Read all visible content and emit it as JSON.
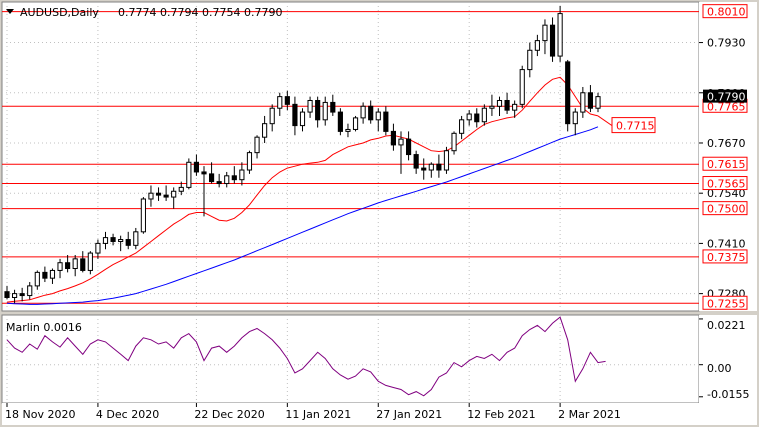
{
  "header": {
    "symbol_tf": "AUDUSD,Daily",
    "ohlc": "0.7774 0.7794 0.7754 0.7790"
  },
  "indicator": {
    "label": "Marlin 0.0016",
    "ticks": [
      "0.0221",
      "0.00",
      "-0.0155"
    ]
  },
  "colors": {
    "background": "#ffffff",
    "grid": "#c0c0c0",
    "candle": "#000000",
    "level": "#ff0000",
    "ma_fast": "#ff0000",
    "ma_slow": "#0000ff",
    "oscillator": "#800080"
  },
  "chart_data": {
    "type": "candlestick",
    "symbol": "AUDUSD",
    "timeframe": "Daily",
    "price_axis": {
      "range": [
        0.7235,
        0.8035
      ],
      "ticks": [
        "0.7930",
        "0.7800",
        "0.7670",
        "0.7540",
        "0.7410",
        "0.7280"
      ],
      "current_price": "0.7790"
    },
    "levels": [
      {
        "label": "0.8010",
        "value": 0.801
      },
      {
        "label": "0.7765",
        "value": 0.7765
      },
      {
        "label": "0.7615",
        "value": 0.7615
      },
      {
        "label": "0.7565",
        "value": 0.7565
      },
      {
        "label": "0.7500",
        "value": 0.75
      },
      {
        "label": "0.7375",
        "value": 0.7375
      },
      {
        "label": "0.7255",
        "value": 0.7255
      }
    ],
    "target_label": {
      "label": "0.7715",
      "value": 0.7715
    },
    "x_labels": [
      "18 Nov 2020",
      "4 Dec 2020",
      "22 Dec 2020",
      "11 Jan 2021",
      "27 Jan 2021",
      "12 Feb 2021",
      "2 Mar 2021"
    ],
    "candles": [
      [
        0.7285,
        0.73,
        0.7265,
        0.727
      ],
      [
        0.727,
        0.729,
        0.7255,
        0.728
      ],
      [
        0.728,
        0.7295,
        0.726,
        0.7275
      ],
      [
        0.7275,
        0.731,
        0.7265,
        0.73
      ],
      [
        0.73,
        0.734,
        0.729,
        0.7335
      ],
      [
        0.7335,
        0.735,
        0.731,
        0.732
      ],
      [
        0.732,
        0.7345,
        0.7305,
        0.734
      ],
      [
        0.734,
        0.737,
        0.732,
        0.736
      ],
      [
        0.736,
        0.738,
        0.7335,
        0.7345
      ],
      [
        0.7345,
        0.738,
        0.7325,
        0.737
      ],
      [
        0.737,
        0.739,
        0.7335,
        0.734
      ],
      [
        0.734,
        0.739,
        0.733,
        0.7385
      ],
      [
        0.7385,
        0.742,
        0.737,
        0.741
      ],
      [
        0.741,
        0.744,
        0.7395,
        0.7425
      ],
      [
        0.7425,
        0.7435,
        0.7405,
        0.7415
      ],
      [
        0.7415,
        0.743,
        0.739,
        0.742
      ],
      [
        0.742,
        0.744,
        0.7395,
        0.7405
      ],
      [
        0.7405,
        0.745,
        0.7395,
        0.744
      ],
      [
        0.744,
        0.753,
        0.7435,
        0.7525
      ],
      [
        0.7525,
        0.756,
        0.7505,
        0.754
      ],
      [
        0.754,
        0.7555,
        0.752,
        0.7535
      ],
      [
        0.7535,
        0.756,
        0.752,
        0.753
      ],
      [
        0.753,
        0.7555,
        0.75,
        0.7545
      ],
      [
        0.7545,
        0.757,
        0.7535,
        0.7555
      ],
      [
        0.7555,
        0.763,
        0.755,
        0.762
      ],
      [
        0.762,
        0.764,
        0.7585,
        0.7595
      ],
      [
        0.7595,
        0.761,
        0.748,
        0.759
      ],
      [
        0.759,
        0.762,
        0.7565,
        0.757
      ],
      [
        0.757,
        0.759,
        0.7555,
        0.7565
      ],
      [
        0.7565,
        0.7595,
        0.7555,
        0.7585
      ],
      [
        0.7585,
        0.761,
        0.7565,
        0.7575
      ],
      [
        0.7575,
        0.762,
        0.756,
        0.76
      ],
      [
        0.76,
        0.765,
        0.759,
        0.7645
      ],
      [
        0.7645,
        0.769,
        0.763,
        0.7685
      ],
      [
        0.7685,
        0.774,
        0.767,
        0.772
      ],
      [
        0.772,
        0.777,
        0.77,
        0.776
      ],
      [
        0.776,
        0.78,
        0.774,
        0.779
      ],
      [
        0.779,
        0.7805,
        0.7755,
        0.777
      ],
      [
        0.777,
        0.779,
        0.769,
        0.7715
      ],
      [
        0.7715,
        0.776,
        0.77,
        0.775
      ],
      [
        0.775,
        0.779,
        0.7735,
        0.778
      ],
      [
        0.778,
        0.779,
        0.771,
        0.773
      ],
      [
        0.773,
        0.779,
        0.7715,
        0.7775
      ],
      [
        0.7775,
        0.7795,
        0.774,
        0.775
      ],
      [
        0.775,
        0.776,
        0.769,
        0.77
      ],
      [
        0.77,
        0.772,
        0.7685,
        0.7705
      ],
      [
        0.7705,
        0.774,
        0.77,
        0.7735
      ],
      [
        0.7735,
        0.7775,
        0.772,
        0.7765
      ],
      [
        0.7765,
        0.778,
        0.772,
        0.773
      ],
      [
        0.773,
        0.776,
        0.77,
        0.775
      ],
      [
        0.775,
        0.7765,
        0.769,
        0.77
      ],
      [
        0.77,
        0.772,
        0.765,
        0.7665
      ],
      [
        0.7665,
        0.77,
        0.759,
        0.768
      ],
      [
        0.768,
        0.77,
        0.7625,
        0.764
      ],
      [
        0.764,
        0.765,
        0.759,
        0.7605
      ],
      [
        0.7605,
        0.763,
        0.7575,
        0.76
      ],
      [
        0.76,
        0.762,
        0.758,
        0.7615
      ],
      [
        0.7615,
        0.764,
        0.758,
        0.76
      ],
      [
        0.76,
        0.766,
        0.759,
        0.765
      ],
      [
        0.765,
        0.77,
        0.764,
        0.7695
      ],
      [
        0.7695,
        0.774,
        0.768,
        0.773
      ],
      [
        0.773,
        0.7755,
        0.7715,
        0.7745
      ],
      [
        0.7745,
        0.776,
        0.771,
        0.7725
      ],
      [
        0.7725,
        0.777,
        0.7715,
        0.776
      ],
      [
        0.776,
        0.7795,
        0.774,
        0.7765
      ],
      [
        0.7765,
        0.779,
        0.774,
        0.778
      ],
      [
        0.778,
        0.78,
        0.7745,
        0.7755
      ],
      [
        0.7755,
        0.778,
        0.7735,
        0.777
      ],
      [
        0.777,
        0.787,
        0.776,
        0.786
      ],
      [
        0.786,
        0.793,
        0.784,
        0.791
      ],
      [
        0.791,
        0.795,
        0.7895,
        0.7935
      ],
      [
        0.7935,
        0.799,
        0.79,
        0.7975
      ],
      [
        0.7975,
        0.7995,
        0.788,
        0.7895
      ],
      [
        0.7895,
        0.8025,
        0.788,
        0.8005
      ],
      [
        0.788,
        0.7885,
        0.77,
        0.772
      ],
      [
        0.772,
        0.776,
        0.769,
        0.775
      ],
      [
        0.775,
        0.7815,
        0.7735,
        0.78
      ],
      [
        0.78,
        0.782,
        0.775,
        0.776
      ],
      [
        0.776,
        0.78,
        0.775,
        0.779
      ]
    ],
    "ma_fast": [
      0.7258,
      0.726,
      0.7262,
      0.7264,
      0.727,
      0.7276,
      0.728,
      0.7287,
      0.7293,
      0.73,
      0.7308,
      0.7318,
      0.733,
      0.7343,
      0.7355,
      0.7365,
      0.7375,
      0.7385,
      0.74,
      0.7415,
      0.743,
      0.7445,
      0.746,
      0.7472,
      0.7485,
      0.749,
      0.749,
      0.748,
      0.747,
      0.7468,
      0.7475,
      0.749,
      0.751,
      0.7535,
      0.756,
      0.758,
      0.7595,
      0.7605,
      0.761,
      0.7615,
      0.7618,
      0.762,
      0.7625,
      0.764,
      0.765,
      0.766,
      0.7665,
      0.767,
      0.7678,
      0.7682,
      0.7688,
      0.769,
      0.7685,
      0.768,
      0.767,
      0.766,
      0.765,
      0.7648,
      0.765,
      0.766,
      0.7675,
      0.769,
      0.7705,
      0.7718,
      0.7725,
      0.773,
      0.7735,
      0.7738,
      0.7755,
      0.7778,
      0.78,
      0.782,
      0.7835,
      0.784,
      0.782,
      0.779,
      0.776,
      0.7745,
      0.774
    ],
    "ma_slow": [
      0.7255,
      0.7254,
      0.7253,
      0.7252,
      0.7252,
      0.7253,
      0.7254,
      0.7255,
      0.7256,
      0.7257,
      0.7258,
      0.726,
      0.7262,
      0.7265,
      0.7268,
      0.7272,
      0.7276,
      0.728,
      0.7286,
      0.7292,
      0.7298,
      0.7304,
      0.7311,
      0.7318,
      0.7325,
      0.7332,
      0.7339,
      0.7346,
      0.7353,
      0.736,
      0.7367,
      0.7375,
      0.7383,
      0.7391,
      0.7399,
      0.7407,
      0.7415,
      0.7423,
      0.7431,
      0.7439,
      0.7447,
      0.7455,
      0.7463,
      0.7471,
      0.7479,
      0.7487,
      0.7494,
      0.7501,
      0.7508,
      0.7515,
      0.7521,
      0.7527,
      0.7533,
      0.7539,
      0.7545,
      0.7551,
      0.7557,
      0.7563,
      0.7569,
      0.7576,
      0.7583,
      0.759,
      0.7597,
      0.7604,
      0.7611,
      0.7618,
      0.7625,
      0.7632,
      0.764,
      0.7648,
      0.7656,
      0.7664,
      0.7672,
      0.768,
      0.7686,
      0.7692,
      0.7698,
      0.7704,
      0.7712
    ],
    "oscillator": {
      "name": "Marlin",
      "value": "0.0016",
      "range": [
        -0.0185,
        0.024
      ],
      "values": [
        0.012,
        0.008,
        0.006,
        0.01,
        0.0075,
        0.014,
        0.011,
        0.0085,
        0.013,
        0.009,
        0.005,
        0.01,
        0.012,
        0.011,
        0.008,
        0.005,
        0.002,
        0.009,
        0.013,
        0.012,
        0.01,
        0.011,
        0.008,
        0.013,
        0.015,
        0.011,
        0.002,
        0.008,
        0.009,
        0.006,
        0.009,
        0.013,
        0.016,
        0.0175,
        0.015,
        0.012,
        0.008,
        0.003,
        -0.004,
        -0.002,
        0.002,
        0.006,
        0.003,
        -0.002,
        -0.005,
        -0.007,
        -0.0055,
        -0.002,
        -0.0035,
        -0.008,
        -0.01,
        -0.011,
        -0.012,
        -0.0145,
        -0.013,
        -0.015,
        -0.012,
        -0.006,
        -0.004,
        0.001,
        -0.001,
        0.002,
        0.004,
        0.003,
        0.005,
        0.002,
        0.006,
        0.008,
        0.014,
        0.017,
        0.019,
        0.016,
        0.02,
        0.023,
        0.012,
        -0.008,
        -0.002,
        0.006,
        0.001,
        0.0016
      ]
    }
  }
}
